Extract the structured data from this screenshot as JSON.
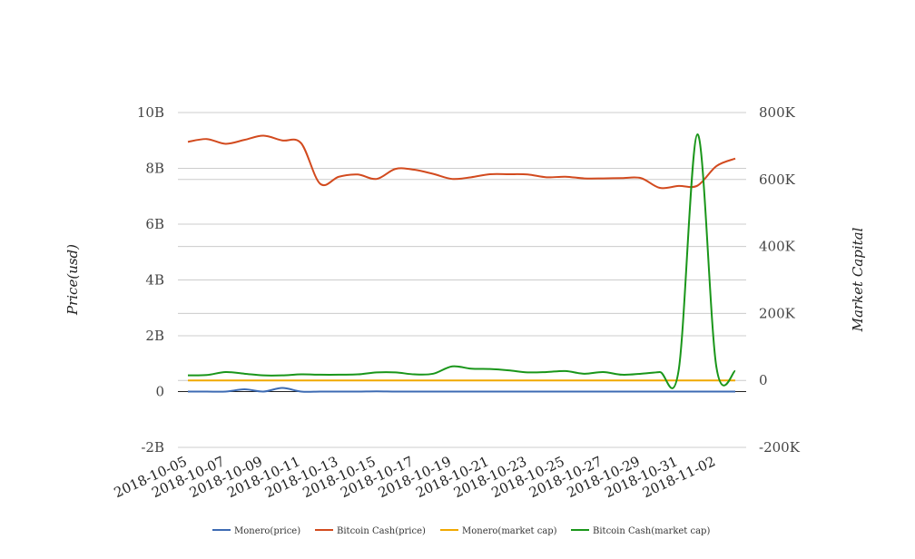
{
  "chart_data": {
    "type": "line",
    "title": "",
    "grid": true,
    "legend_position": "bottom",
    "left_axis": {
      "label": "Price(usd)",
      "ticks": [
        "10B",
        "8B",
        "6B",
        "4B",
        "2B",
        "0",
        "-2B"
      ],
      "range": [
        -2000000000,
        10000000000
      ]
    },
    "right_axis": {
      "label": "Market Capital",
      "ticks": [
        "800K",
        "600K",
        "400K",
        "200K",
        "0",
        "-200K"
      ],
      "range": [
        -200000,
        800000
      ]
    },
    "x": [
      "2018-10-05",
      "2018-10-06",
      "2018-10-07",
      "2018-10-08",
      "2018-10-09",
      "2018-10-10",
      "2018-10-11",
      "2018-10-12",
      "2018-10-13",
      "2018-10-14",
      "2018-10-15",
      "2018-10-16",
      "2018-10-17",
      "2018-10-18",
      "2018-10-19",
      "2018-10-20",
      "2018-10-21",
      "2018-10-22",
      "2018-10-23",
      "2018-10-24",
      "2018-10-25",
      "2018-10-26",
      "2018-10-27",
      "2018-10-28",
      "2018-10-29",
      "2018-10-30",
      "2018-10-31",
      "2018-11-01",
      "2018-11-02",
      "2018-11-03"
    ],
    "x_tick_labels": [
      "2018-10-05",
      "2018-10-07",
      "2018-10-09",
      "2018-10-11",
      "2018-10-13",
      "2018-10-15",
      "2018-10-17",
      "2018-10-19",
      "2018-10-21",
      "2018-10-23",
      "2018-10-25",
      "2018-10-27",
      "2018-10-29",
      "2018-10-31",
      "2018-11-02"
    ],
    "series": [
      {
        "name": "Monero(price)",
        "axis": "left",
        "color": "#3d6bb3",
        "values": [
          0,
          0,
          0,
          80000000,
          0,
          130000000,
          0,
          0,
          0,
          0,
          10000000,
          0,
          0,
          0,
          0,
          0,
          0,
          0,
          0,
          0,
          0,
          0,
          0,
          0,
          0,
          0,
          0,
          0,
          0,
          0
        ]
      },
      {
        "name": "Bitcoin Cash(price)",
        "axis": "left",
        "color": "#d24a1e",
        "values": [
          8950000000,
          9050000000,
          8880000000,
          9020000000,
          9170000000,
          9000000000,
          8900000000,
          7450000000,
          7700000000,
          7780000000,
          7620000000,
          7980000000,
          7950000000,
          7800000000,
          7620000000,
          7680000000,
          7790000000,
          7790000000,
          7780000000,
          7680000000,
          7700000000,
          7640000000,
          7640000000,
          7650000000,
          7650000000,
          7300000000,
          7370000000,
          7380000000,
          8080000000,
          8350000000
        ]
      },
      {
        "name": "Monero(market cap)",
        "axis": "right",
        "color": "#f0a800",
        "values": [
          0,
          0,
          0,
          0,
          0,
          0,
          0,
          0,
          0,
          0,
          0,
          0,
          0,
          0,
          0,
          0,
          0,
          0,
          0,
          0,
          0,
          0,
          0,
          0,
          0,
          0,
          0,
          0,
          0,
          0
        ]
      },
      {
        "name": "Bitcoin Cash(market cap)",
        "axis": "right",
        "color": "#1a961a",
        "values": [
          15000,
          16000,
          25000,
          20000,
          15000,
          15000,
          18000,
          17000,
          17000,
          18000,
          24000,
          24000,
          18000,
          20000,
          42000,
          35000,
          34000,
          30000,
          24000,
          25000,
          28000,
          20000,
          25000,
          17000,
          20000,
          25000,
          30000,
          735000,
          40000,
          28000
        ]
      }
    ]
  }
}
